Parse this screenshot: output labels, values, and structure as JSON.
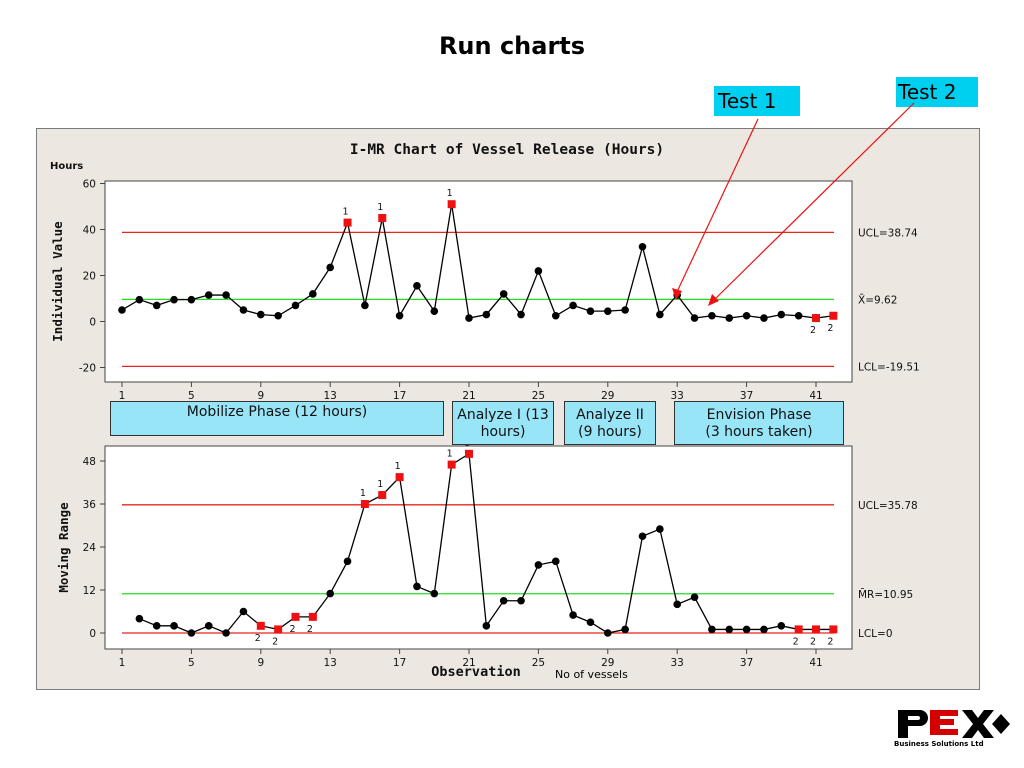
{
  "slide": {
    "title": "Run charts"
  },
  "callouts": {
    "test1": "Test 1",
    "test2": "Test 2"
  },
  "chart": {
    "title": "I-MR Chart of Vessel Release (Hours)",
    "units_label": "Hours",
    "xlabel": "Observation",
    "x_ticks": [
      1,
      5,
      9,
      13,
      17,
      21,
      25,
      29,
      33,
      37,
      41
    ],
    "footer_note": "No of vessels"
  },
  "phases": {
    "mobilize": "Mobilize Phase (12 hours)",
    "analyze1_line1": "Analyze I (13",
    "analyze1_line2": "hours)",
    "analyze2_line1": "Analyze II",
    "analyze2_line2": "(9 hours)",
    "envision_line1": "Envision Phase",
    "envision_line2": "(3 hours taken)"
  },
  "chart_data": [
    {
      "type": "line",
      "title": "I-MR Chart of Vessel Release (Hours)",
      "ylabel": "Individual Value",
      "ylim": [
        -20,
        60
      ],
      "y_ticks": [
        -20,
        0,
        20,
        40,
        60
      ],
      "x": [
        1,
        2,
        3,
        4,
        5,
        6,
        7,
        8,
        9,
        10,
        11,
        12,
        13,
        14,
        15,
        16,
        17,
        18,
        19,
        20,
        21,
        22,
        23,
        24,
        25,
        26,
        27,
        28,
        29,
        30,
        31,
        32,
        33,
        34,
        35,
        36,
        37,
        38,
        39,
        40,
        41,
        42
      ],
      "values": [
        5,
        9.5,
        7,
        9.5,
        9.5,
        11.5,
        11.5,
        5,
        3,
        2.5,
        7,
        12,
        23.5,
        43,
        7,
        45,
        2.5,
        15.5,
        4.5,
        51,
        1.5,
        3,
        12,
        3,
        22,
        2.5,
        7,
        4.5,
        4.5,
        5,
        32.5,
        3,
        11.5,
        1.5,
        2.5,
        1.5,
        2.5,
        1.5,
        3,
        2.5,
        1.5,
        2.5
      ],
      "flags": {
        "14": "1",
        "16": "1",
        "20": "1",
        "41": "2",
        "42": "2"
      },
      "control_lines": [
        {
          "name": "UCL",
          "value": 38.74,
          "label": "UCL=38.74",
          "color": "#e8261c"
        },
        {
          "name": "CL",
          "value": 9.62,
          "label": "X̄=9.62",
          "color": "#22dd22"
        },
        {
          "name": "LCL",
          "value": -19.51,
          "label": "LCL=-19.51",
          "color": "#e8261c"
        }
      ]
    },
    {
      "type": "line",
      "ylabel": "Moving Range",
      "xlabel": "Observation",
      "ylim": [
        0,
        48
      ],
      "y_ticks": [
        0,
        12,
        24,
        36,
        48
      ],
      "x": [
        2,
        3,
        4,
        5,
        6,
        7,
        8,
        9,
        10,
        11,
        12,
        13,
        14,
        15,
        16,
        17,
        18,
        19,
        20,
        21,
        22,
        23,
        24,
        25,
        26,
        27,
        28,
        29,
        30,
        31,
        32,
        33,
        34,
        35,
        36,
        37,
        38,
        39,
        40,
        41,
        42
      ],
      "values": [
        4,
        2,
        2,
        0,
        2,
        0,
        6,
        2,
        1,
        4.5,
        4.5,
        11,
        20,
        36,
        38.5,
        43.5,
        13,
        11,
        47,
        50,
        2,
        9,
        9,
        19,
        20,
        5,
        3,
        0,
        1,
        27,
        29,
        8,
        10,
        1,
        1,
        1,
        1,
        2,
        1,
        1,
        1
      ],
      "flags": {
        "9": "2",
        "10": "2",
        "11": "2",
        "12": "2",
        "15": "1",
        "16": "1",
        "17": "1",
        "20": "1",
        "21": "1",
        "40": "2",
        "41": "2",
        "42": "2"
      },
      "control_lines": [
        {
          "name": "UCL",
          "value": 35.78,
          "label": "UCL=35.78",
          "color": "#e8261c"
        },
        {
          "name": "CL",
          "value": 10.95,
          "label": "M̄R=10.95",
          "color": "#22dd22"
        },
        {
          "name": "LCL",
          "value": 0,
          "label": "LCL=0",
          "color": "#e8261c"
        }
      ]
    }
  ],
  "logo": {
    "tagline": "Business Solutions Ltd"
  },
  "colors": {
    "callout": "#00d0f0",
    "phase": "#99e5f8",
    "frame": "#ece8e1",
    "ucl": "#e8261c",
    "center": "#22dd22",
    "flag": "#ee1111",
    "arrow": "#ee1111"
  }
}
